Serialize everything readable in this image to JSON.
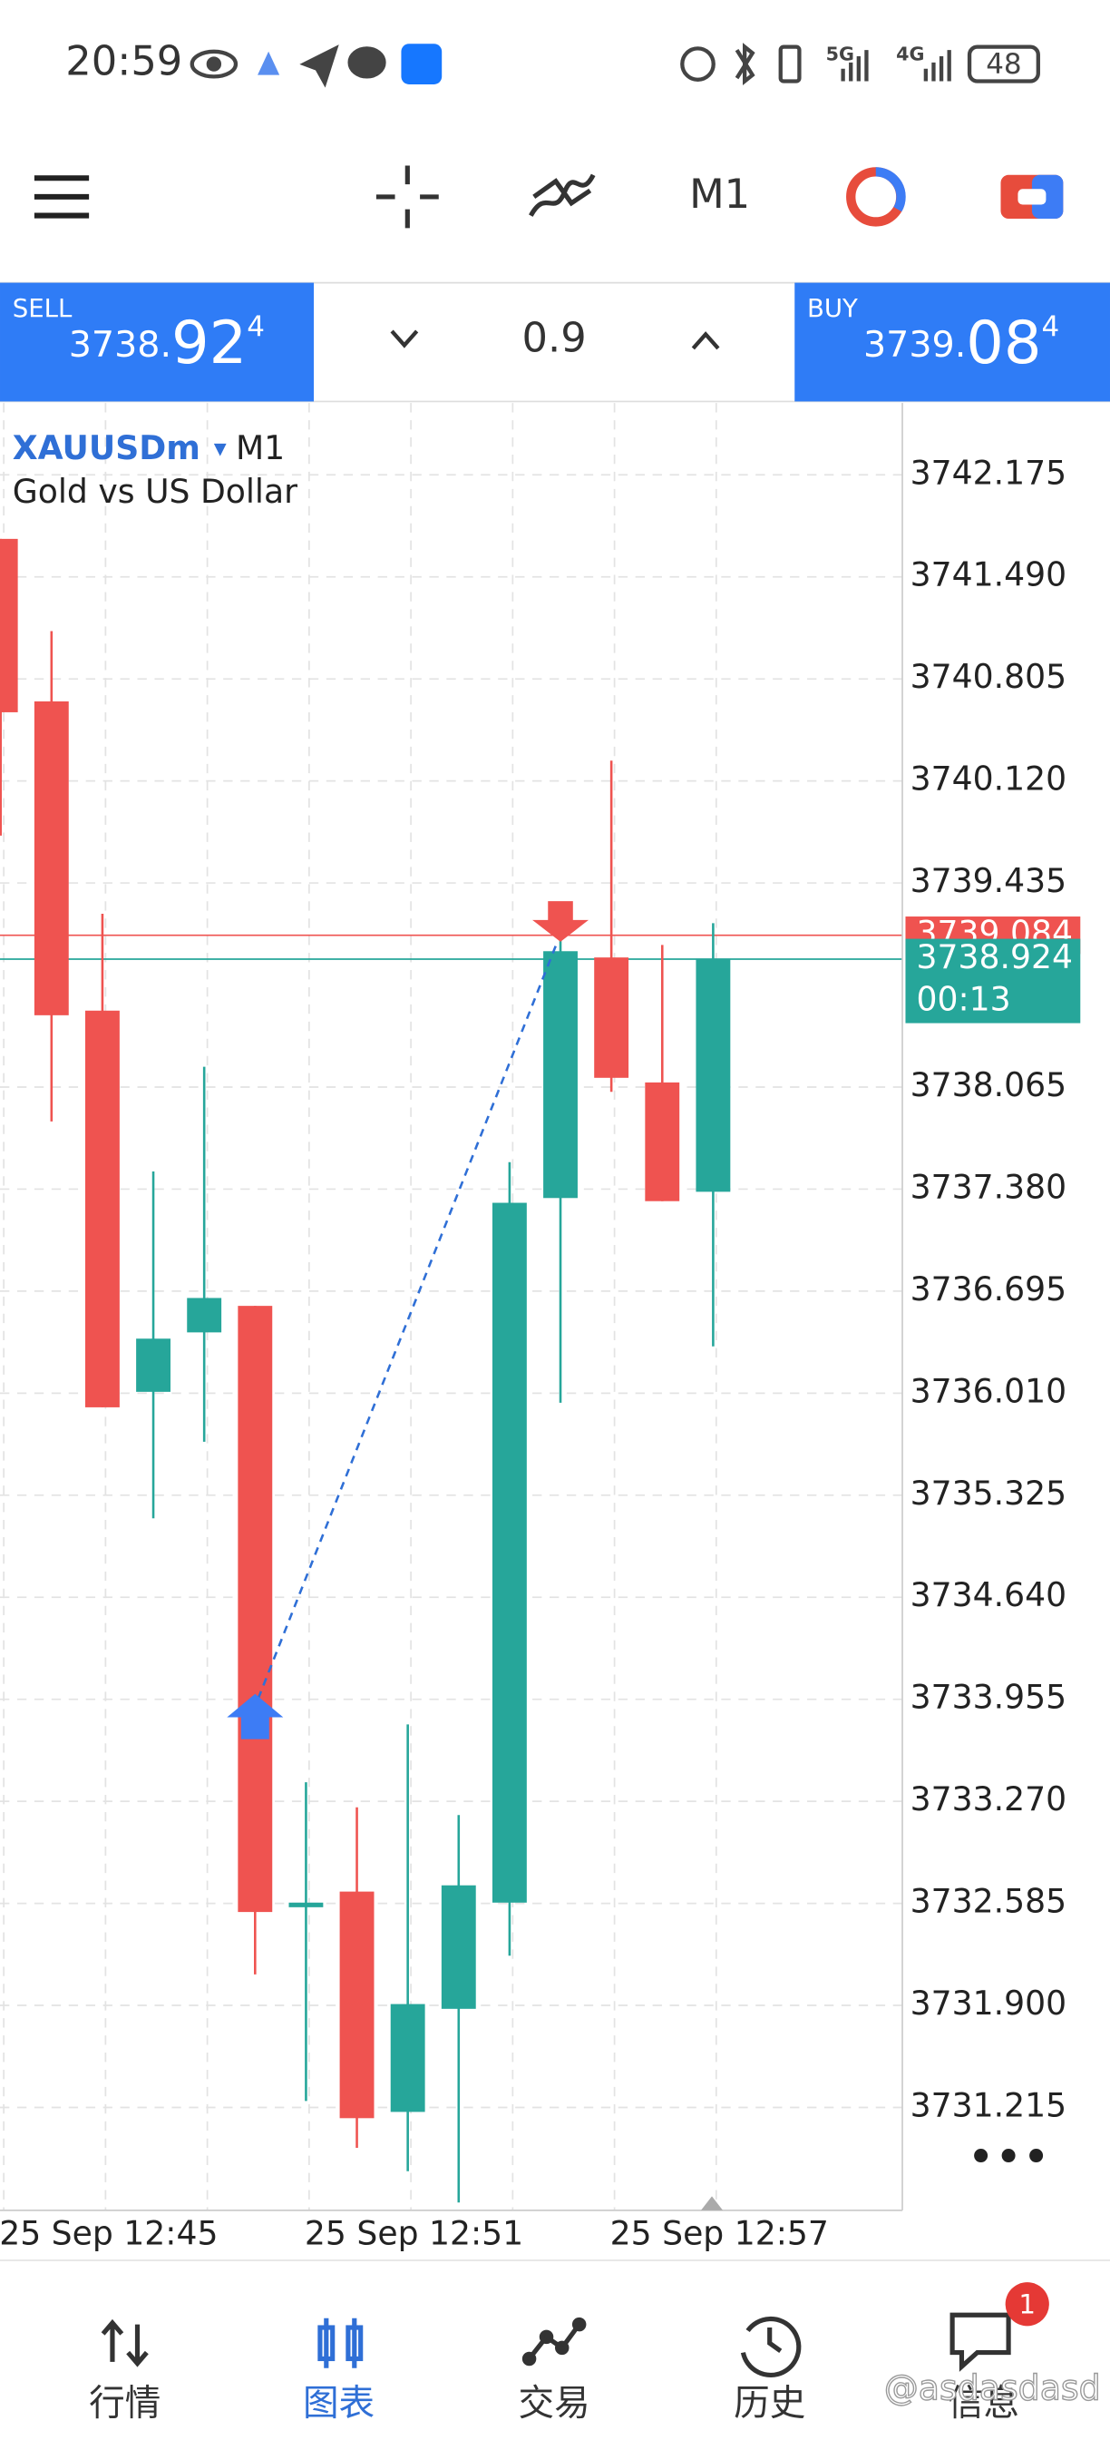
{
  "status_bar": {
    "time": "20:59",
    "net1": "5G",
    "net2": "4G",
    "battery": "48"
  },
  "toolbar": {
    "timeframe": "M1"
  },
  "trade_bar": {
    "sell": {
      "label": "SELL",
      "price_main": "3738.",
      "price_big": "92",
      "price_small": "4"
    },
    "lot": "0.9",
    "buy": {
      "label": "BUY",
      "price_main": "3739.",
      "price_big": "08",
      "price_small": "4"
    }
  },
  "chart_data": {
    "type": "candlestick",
    "symbol": "XAUUSDm",
    "timeframe": "M1",
    "description": "Gold vs US Dollar",
    "categories": [
      null,
      null,
      "25 Sep 12:45",
      null,
      null,
      null,
      null,
      null,
      "25 Sep 12:51",
      null,
      null,
      null,
      null,
      null,
      "25 Sep 12:57"
    ],
    "open": [
      3741.745,
      3740.654,
      3738.578,
      3736.019,
      3736.418,
      3736.596,
      3732.559,
      3732.664,
      3731.185,
      3731.877,
      3732.59,
      3737.32,
      3738.935,
      3738.096,
      3737.362
    ],
    "high": [
      3741.745,
      3741.126,
      3739.228,
      3737.498,
      3738.201,
      3736.596,
      3733.398,
      3733.23,
      3733.786,
      3733.178,
      3737.561,
      3739.06,
      3740.256,
      3739.019,
      3739.165
    ],
    "low": [
      3739.753,
      3737.834,
      3735.915,
      3735.17,
      3735.684,
      3732.108,
      3731.258,
      3730.944,
      3730.787,
      3730.577,
      3732.234,
      3735.946,
      3738.033,
      3737.299,
      3736.324
    ],
    "close": [
      3740.581,
      3738.547,
      3735.915,
      3736.376,
      3736.649,
      3732.527,
      3732.59,
      3731.143,
      3731.909,
      3732.706,
      3737.288,
      3738.977,
      3738.127,
      3737.299,
      3738.924
    ],
    "up_color": "#26a69a",
    "down_color": "#ef5350",
    "ylim": [
      3730.524,
      3742.657
    ],
    "yticks": [
      3742.175,
      {
        "value": 3741.49,
        "label": "3741.490"
      },
      3740.805,
      {
        "value": 3740.12,
        "label": "3740.120"
      },
      3739.435,
      3738.065,
      {
        "value": 3737.38,
        "label": "3737.380"
      },
      3736.695,
      {
        "value": 3736.01,
        "label": "3736.010"
      },
      3735.325,
      {
        "value": 3734.64,
        "label": "3734.640"
      },
      3733.955,
      {
        "value": 3733.27,
        "label": "3733.270"
      },
      3732.585,
      {
        "value": 3731.9,
        "label": "3731.900"
      },
      3731.215
    ],
    "grid": true,
    "ask": 3739.084,
    "bid": 3738.924,
    "countdown": "00:13",
    "trade": {
      "entry": 3733.96,
      "exit": 3739.04
    }
  },
  "bottom_nav": {
    "items": [
      "行情",
      "图表",
      "交易",
      "历史",
      "信息"
    ],
    "badge": "1",
    "watermark": "@asdasdasd"
  }
}
